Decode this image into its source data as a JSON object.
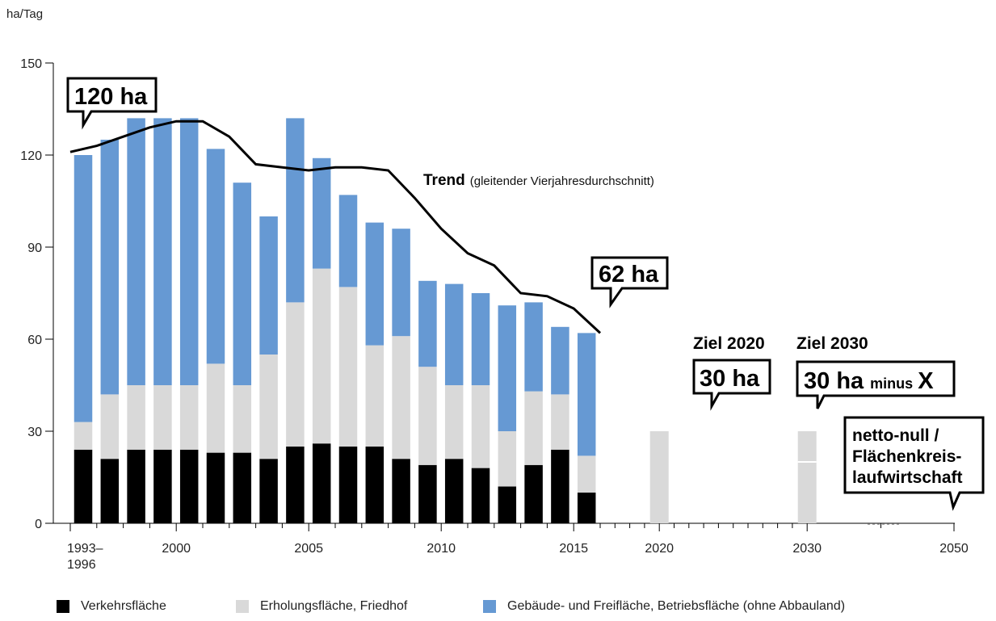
{
  "chart_data": {
    "type": "bar",
    "ylabel": "ha/Tag",
    "ylim": [
      0,
      150
    ],
    "yticks": [
      "0",
      "30",
      "60",
      "90",
      "120",
      "150"
    ],
    "x_tick_labels": [
      "1993–\n1996",
      "2000",
      "2005",
      "2010",
      "2015",
      "2020",
      "2030",
      "2050"
    ],
    "categories": [
      "1993–1996",
      "1997",
      "1998",
      "1999",
      "2000",
      "2001",
      "2002",
      "2003",
      "2004",
      "2005",
      "2006",
      "2007",
      "2008",
      "2009",
      "2010",
      "2011",
      "2012",
      "2013",
      "2014",
      "2015"
    ],
    "series": [
      {
        "name": "Verkehrsfläche",
        "color": "#000000",
        "values": [
          24,
          21,
          24,
          24,
          24,
          23,
          23,
          21,
          25,
          26,
          25,
          25,
          21,
          19,
          21,
          18,
          12,
          19,
          24,
          10
        ]
      },
      {
        "name": "Erholungsfläche, Friedhof",
        "color": "#d9d9d9",
        "values": [
          9,
          21,
          21,
          21,
          21,
          29,
          22,
          34,
          47,
          57,
          52,
          33,
          40,
          32,
          24,
          27,
          18,
          24,
          18,
          12
        ]
      },
      {
        "name": "Gebäude- und Freifläche, Betriebsfläche (ohne Abbauland)",
        "color": "#6699d3",
        "values": [
          87,
          83,
          87,
          87,
          87,
          70,
          66,
          45,
          60,
          36,
          30,
          40,
          35,
          28,
          33,
          30,
          41,
          29,
          22,
          40
        ]
      }
    ],
    "trend": {
      "label_bold": "Trend",
      "label_rest": "(gleitender Vierjahresdurchschnitt)",
      "x": [
        1996,
        1997,
        1998,
        1999,
        2000,
        2001,
        2002,
        2003,
        2004,
        2005,
        2006,
        2007,
        2008,
        2009,
        2010,
        2011,
        2012,
        2013,
        2014,
        2015,
        2016
      ],
      "values": [
        121,
        123,
        126,
        129,
        131,
        131,
        126,
        117,
        116,
        115,
        116,
        116,
        115,
        106,
        96,
        88,
        84,
        75,
        74,
        70,
        62
      ]
    },
    "targets": [
      {
        "label": "Ziel 2020",
        "callout": "30 ha",
        "year": 2020,
        "value": 30
      },
      {
        "label": "Ziel 2030",
        "callout": "30 ha",
        "callout_suffix": "minus",
        "callout_end": "X",
        "year": 2030,
        "value": 30
      }
    ],
    "callouts": {
      "start": "120 ha",
      "end": "62 ha",
      "final": [
        "netto-null /",
        "Flächenkreis-",
        "laufwirtschaft"
      ]
    }
  }
}
